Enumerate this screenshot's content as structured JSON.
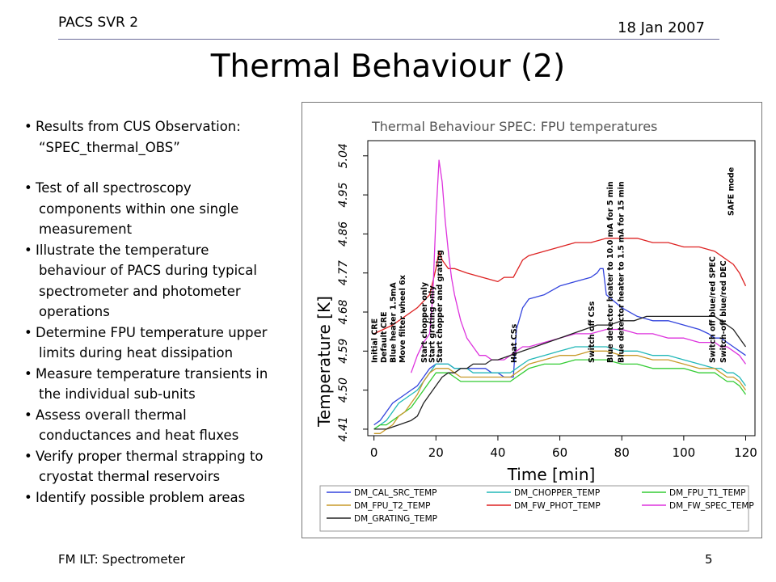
{
  "header": {
    "left": "PACS SVR 2",
    "right": "18 Jan 2007"
  },
  "slide_title": "Thermal Behaviour (2)",
  "bullets": [
    {
      "lines": [
        "Results from CUS Observation:",
        "“SPEC_thermal_OBS”"
      ]
    },
    {
      "lines": [
        "Test of all spectroscopy",
        "components within one single",
        "measurement"
      ]
    },
    {
      "lines": [
        "Illustrate the temperature",
        "behaviour of PACS during typical",
        "spectrometer and photometer",
        "operations"
      ]
    },
    {
      "lines": [
        "Determine FPU temperature upper",
        "limits during heat dissipation"
      ]
    },
    {
      "lines": [
        "Measure temperature transients in",
        "the individual sub-units"
      ]
    },
    {
      "lines": [
        "Assess overall thermal",
        "conductances and heat fluxes"
      ]
    },
    {
      "lines": [
        "Verify proper thermal strapping to",
        "cryostat thermal reservoirs"
      ]
    },
    {
      "lines": [
        "Identify possible problem areas"
      ]
    }
  ],
  "footer": {
    "left": "FM ILT: Spectrometer",
    "right": "5"
  },
  "chart_data": {
    "type": "line",
    "title": "Thermal Behaviour SPEC: FPU temperatures",
    "xlabel": "Time [min]",
    "ylabel": "Temperature [K]",
    "xlim": [
      -2,
      123
    ],
    "ylim": [
      4.395,
      5.075
    ],
    "xticks": [
      0,
      20,
      40,
      60,
      80,
      100,
      120
    ],
    "yticks": [
      4.41,
      4.5,
      4.59,
      4.68,
      4.77,
      4.86,
      4.95,
      5.04
    ],
    "ytick_labels": [
      "4.41",
      "4.50",
      "4.59",
      "4.68",
      "4.77",
      "4.86",
      "4.95",
      "5.04"
    ],
    "grid": false,
    "legend_position": "bottom",
    "annotations": [
      {
        "text": "Initial CRE",
        "x": 0
      },
      {
        "text": "Default CRE",
        "x": 3
      },
      {
        "text": "Blue heater 1.5mA",
        "x": 6
      },
      {
        "text": "Move filter wheel 6x",
        "x": 9
      },
      {
        "text": "Start chopper only",
        "x": 16
      },
      {
        "text": "Start grating only",
        "x": 18.5
      },
      {
        "text": "Start chopper and grating",
        "x": 21
      },
      {
        "text": "Heat CSs",
        "x": 45
      },
      {
        "text": "Switch off CSs",
        "x": 70
      },
      {
        "text": "Blue detector heater to 10.0 mA for 5 min",
        "x": 76
      },
      {
        "text": "Blue detector heater to 1.5 mA for 15 min",
        "x": 79.5
      },
      {
        "text": "SAFE mode",
        "x": 115
      },
      {
        "text": "Switch off blue/red SPEC",
        "x": 109
      },
      {
        "text": "Switch-off blue/red DEC",
        "x": 112.5
      }
    ],
    "series": [
      {
        "name": "DM_CAL_SRC_TEMP",
        "color": "#3344dd",
        "x": [
          0,
          2,
          4,
          6,
          8,
          10,
          12,
          14,
          16,
          18,
          20,
          22,
          24,
          26,
          28,
          30,
          32,
          34,
          36,
          38,
          40,
          42,
          44,
          45,
          46,
          48,
          50,
          55,
          60,
          65,
          70,
          72,
          73,
          74,
          75,
          80,
          85,
          90,
          95,
          100,
          105,
          108,
          110,
          112,
          114,
          116,
          118,
          120
        ],
        "y": [
          4.42,
          4.43,
          4.45,
          4.47,
          4.48,
          4.49,
          4.5,
          4.51,
          4.53,
          4.55,
          4.56,
          4.56,
          4.56,
          4.55,
          4.55,
          4.55,
          4.55,
          4.55,
          4.55,
          4.54,
          4.54,
          4.53,
          4.53,
          4.53,
          4.64,
          4.69,
          4.71,
          4.72,
          4.74,
          4.75,
          4.76,
          4.77,
          4.78,
          4.78,
          4.72,
          4.69,
          4.67,
          4.66,
          4.66,
          4.65,
          4.64,
          4.63,
          4.62,
          4.62,
          4.61,
          4.6,
          4.59,
          4.58
        ]
      },
      {
        "name": "DM_CHOPPER_TEMP",
        "color": "#22b8b8",
        "x": [
          0,
          2,
          4,
          6,
          8,
          10,
          12,
          14,
          16,
          18,
          20,
          22,
          24,
          26,
          28,
          30,
          32,
          34,
          36,
          38,
          40,
          42,
          44,
          46,
          48,
          50,
          55,
          60,
          65,
          70,
          75,
          80,
          85,
          90,
          95,
          100,
          105,
          110,
          112,
          114,
          116,
          118,
          120
        ],
        "y": [
          4.41,
          4.42,
          4.43,
          4.45,
          4.47,
          4.48,
          4.49,
          4.5,
          4.52,
          4.54,
          4.56,
          4.56,
          4.56,
          4.55,
          4.55,
          4.55,
          4.54,
          4.54,
          4.54,
          4.54,
          4.54,
          4.54,
          4.54,
          4.55,
          4.56,
          4.57,
          4.58,
          4.59,
          4.6,
          4.6,
          4.6,
          4.59,
          4.59,
          4.58,
          4.58,
          4.57,
          4.56,
          4.55,
          4.55,
          4.54,
          4.54,
          4.53,
          4.51
        ]
      },
      {
        "name": "DM_FPU_T1_TEMP",
        "color": "#33cc33",
        "x": [
          0,
          2,
          4,
          6,
          8,
          10,
          12,
          14,
          16,
          18,
          20,
          22,
          24,
          26,
          28,
          30,
          32,
          34,
          36,
          38,
          40,
          42,
          44,
          46,
          48,
          50,
          55,
          60,
          65,
          70,
          75,
          80,
          85,
          90,
          95,
          100,
          105,
          110,
          112,
          114,
          116,
          118,
          120
        ],
        "y": [
          4.41,
          4.42,
          4.42,
          4.43,
          4.44,
          4.45,
          4.46,
          4.48,
          4.5,
          4.52,
          4.54,
          4.54,
          4.54,
          4.53,
          4.52,
          4.52,
          4.52,
          4.52,
          4.52,
          4.52,
          4.52,
          4.52,
          4.52,
          4.53,
          4.54,
          4.55,
          4.56,
          4.56,
          4.57,
          4.57,
          4.57,
          4.56,
          4.56,
          4.55,
          4.55,
          4.55,
          4.54,
          4.54,
          4.53,
          4.52,
          4.52,
          4.51,
          4.49
        ]
      },
      {
        "name": "DM_FPU_T2_TEMP",
        "color": "#c89a2a",
        "x": [
          0,
          2,
          4,
          6,
          8,
          10,
          12,
          14,
          16,
          18,
          20,
          22,
          24,
          26,
          28,
          30,
          32,
          34,
          36,
          38,
          40,
          42,
          44,
          46,
          48,
          50,
          55,
          60,
          65,
          70,
          75,
          80,
          85,
          90,
          95,
          100,
          105,
          110,
          112,
          114,
          116,
          118,
          120
        ],
        "y": [
          4.4,
          4.4,
          4.41,
          4.42,
          4.44,
          4.45,
          4.47,
          4.49,
          4.52,
          4.54,
          4.55,
          4.55,
          4.55,
          4.54,
          4.53,
          4.53,
          4.53,
          4.53,
          4.53,
          4.53,
          4.53,
          4.53,
          4.53,
          4.54,
          4.55,
          4.56,
          4.57,
          4.58,
          4.58,
          4.59,
          4.59,
          4.58,
          4.58,
          4.57,
          4.57,
          4.56,
          4.55,
          4.55,
          4.54,
          4.53,
          4.53,
          4.52,
          4.5
        ]
      },
      {
        "name": "DM_FW_PHOT_TEMP",
        "color": "#dd2222",
        "x": [
          0,
          3,
          6,
          10,
          14,
          18,
          20,
          21,
          22,
          23,
          24,
          26,
          30,
          35,
          40,
          42,
          45,
          48,
          50,
          55,
          60,
          65,
          70,
          75,
          80,
          85,
          90,
          95,
          100,
          105,
          110,
          112,
          114,
          116,
          118,
          120
        ],
        "y": [
          4.63,
          4.64,
          4.65,
          4.67,
          4.69,
          4.72,
          4.78,
          4.82,
          4.8,
          4.79,
          4.78,
          4.78,
          4.77,
          4.76,
          4.75,
          4.76,
          4.76,
          4.8,
          4.81,
          4.82,
          4.83,
          4.84,
          4.84,
          4.85,
          4.85,
          4.85,
          4.84,
          4.84,
          4.83,
          4.83,
          4.82,
          4.81,
          4.8,
          4.79,
          4.77,
          4.74
        ]
      },
      {
        "name": "DM_FW_SPEC_TEMP",
        "color": "#dd33dd",
        "x": [
          12,
          14,
          16,
          18,
          19,
          20,
          21,
          22,
          23,
          24,
          25,
          26,
          27,
          28,
          30,
          32,
          34,
          36,
          38,
          40,
          42,
          44,
          46,
          48,
          50,
          55,
          60,
          65,
          70,
          75,
          80,
          85,
          90,
          95,
          100,
          105,
          110,
          112,
          114,
          116,
          118,
          120
        ],
        "y": [
          4.54,
          4.58,
          4.61,
          4.63,
          4.72,
          4.9,
          5.03,
          4.98,
          4.89,
          4.82,
          4.76,
          4.72,
          4.69,
          4.66,
          4.62,
          4.6,
          4.58,
          4.58,
          4.57,
          4.57,
          4.57,
          4.58,
          4.59,
          4.6,
          4.6,
          4.61,
          4.62,
          4.63,
          4.63,
          4.64,
          4.64,
          4.63,
          4.63,
          4.62,
          4.62,
          4.61,
          4.61,
          4.6,
          4.6,
          4.59,
          4.58,
          4.56
        ]
      },
      {
        "name": "DM_GRATING_TEMP",
        "color": "#222222",
        "x": [
          0,
          4,
          8,
          12,
          14,
          16,
          18,
          20,
          22,
          24,
          26,
          28,
          30,
          32,
          34,
          36,
          38,
          40,
          44,
          48,
          52,
          56,
          60,
          64,
          68,
          72,
          76,
          80,
          84,
          88,
          92,
          96,
          100,
          104,
          108,
          110,
          112,
          114,
          116,
          118,
          120
        ],
        "y": [
          4.41,
          4.41,
          4.42,
          4.43,
          4.44,
          4.47,
          4.49,
          4.51,
          4.53,
          4.54,
          4.54,
          4.55,
          4.55,
          4.56,
          4.56,
          4.56,
          4.57,
          4.57,
          4.58,
          4.59,
          4.6,
          4.61,
          4.62,
          4.63,
          4.64,
          4.65,
          4.65,
          4.66,
          4.66,
          4.67,
          4.67,
          4.67,
          4.67,
          4.67,
          4.67,
          4.67,
          4.66,
          4.65,
          4.64,
          4.62,
          4.6
        ]
      }
    ]
  }
}
